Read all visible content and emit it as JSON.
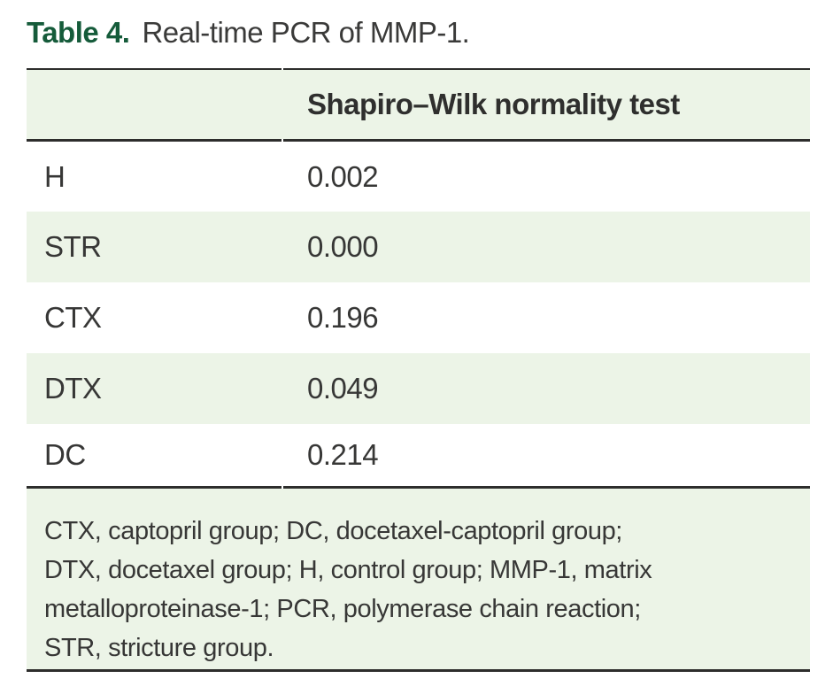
{
  "caption": {
    "label": "Table 4.",
    "text": "Real-time PCR of MMP-1."
  },
  "table": {
    "header": {
      "group_column": "",
      "value_column": "Shapiro–Wilk normality test"
    },
    "rows": [
      {
        "group": "H",
        "value": "0.002"
      },
      {
        "group": "STR",
        "value": "0.000"
      },
      {
        "group": "CTX",
        "value": "0.196"
      },
      {
        "group": "DTX",
        "value": "0.049"
      },
      {
        "group": "DC",
        "value": "0.214"
      }
    ],
    "footnote_lines": [
      "CTX, captopril group; DC, docetaxel-captopril group;",
      "DTX, docetaxel group; H, control group; MMP-1, matrix",
      "metalloproteinase-1; PCR, polymerase chain reaction;",
      "STR, stricture group."
    ]
  },
  "colors": {
    "caption_accent_green": "#155b3a",
    "row_highlight_green": "#ecf4e7",
    "border_dark": "#2d2d2c",
    "body_text": "#373736"
  }
}
